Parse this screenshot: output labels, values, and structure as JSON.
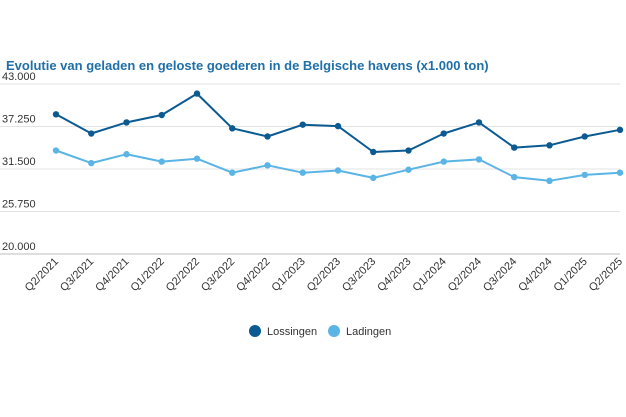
{
  "chart_data": {
    "type": "line",
    "title": "Evolutie van geladen en geloste goederen in de Belgische havens (x1.000 ton)",
    "xlabel": "",
    "ylabel": "",
    "ylim": [
      20000,
      43000
    ],
    "yticks": [
      20000,
      25750,
      31500,
      37250,
      43000
    ],
    "ytick_labels": [
      "20.000",
      "25.750",
      "31.500",
      "37.250",
      "43.000"
    ],
    "grid": true,
    "legend_position": "bottom-center",
    "categories": [
      "Q2/2021",
      "Q3/2021",
      "Q4/2021",
      "Q1/2022",
      "Q2/2022",
      "Q3/2022",
      "Q4/2022",
      "Q1/2023",
      "Q2/2023",
      "Q3/2023",
      "Q4/2023",
      "Q1/2024",
      "Q2/2024",
      "Q3/2024",
      "Q4/2024",
      "Q1/2025",
      "Q2/2025"
    ],
    "series": [
      {
        "name": "Lossingen",
        "color": "#0b5a91",
        "values": [
          38900,
          36300,
          37800,
          38800,
          41700,
          37000,
          35900,
          37500,
          37300,
          33800,
          34000,
          36300,
          37800,
          34400,
          34700,
          35900,
          36800
        ]
      },
      {
        "name": "Ladingen",
        "color": "#5ab4e5",
        "values": [
          34000,
          32300,
          33500,
          32500,
          32900,
          31000,
          32000,
          31000,
          31300,
          30300,
          31400,
          32500,
          32800,
          30400,
          29900,
          30700,
          31000
        ]
      }
    ]
  }
}
